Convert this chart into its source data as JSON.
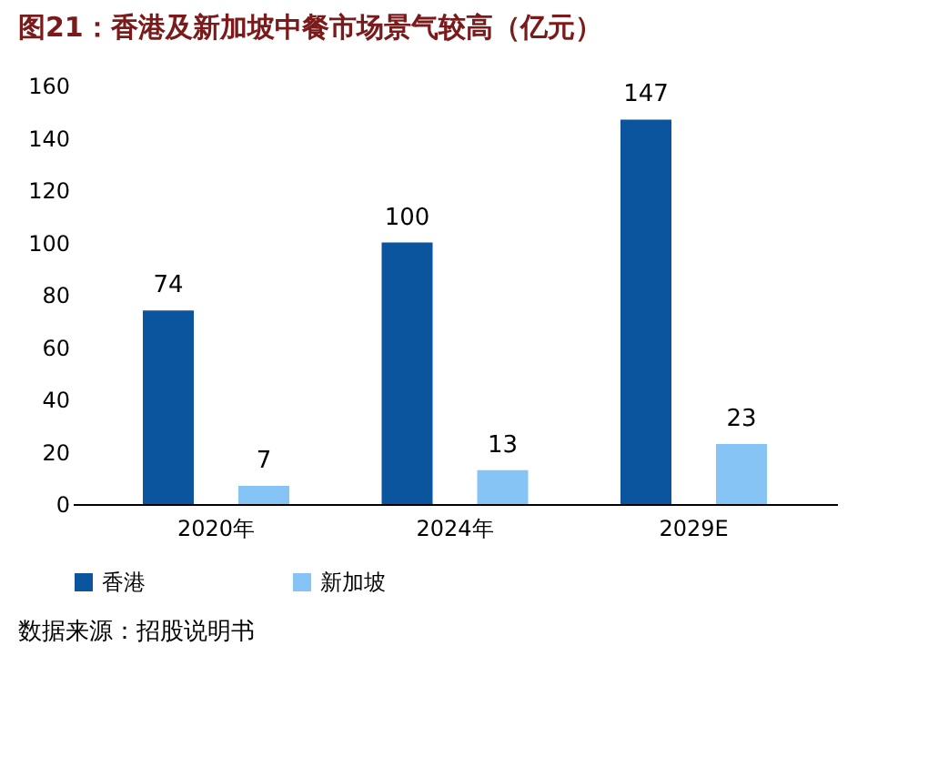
{
  "chart_data": {
    "type": "bar",
    "title": "图21：香港及新加坡中餐市场景气较高（亿元）",
    "categories": [
      "2020年",
      "2024年",
      "2029E"
    ],
    "series": [
      {
        "name": "香港",
        "color": "#0b559f",
        "values": [
          74,
          100,
          147
        ]
      },
      {
        "name": "新加坡",
        "color": "#86c4f5",
        "values": [
          7,
          13,
          23
        ]
      }
    ],
    "ylim": [
      0,
      160
    ],
    "yticks": [
      0,
      20,
      40,
      60,
      80,
      100,
      120,
      140,
      160
    ],
    "data_labels": true,
    "grid": false,
    "legend": "bottom",
    "annotations": [
      "数据来源：招股说明书"
    ]
  }
}
